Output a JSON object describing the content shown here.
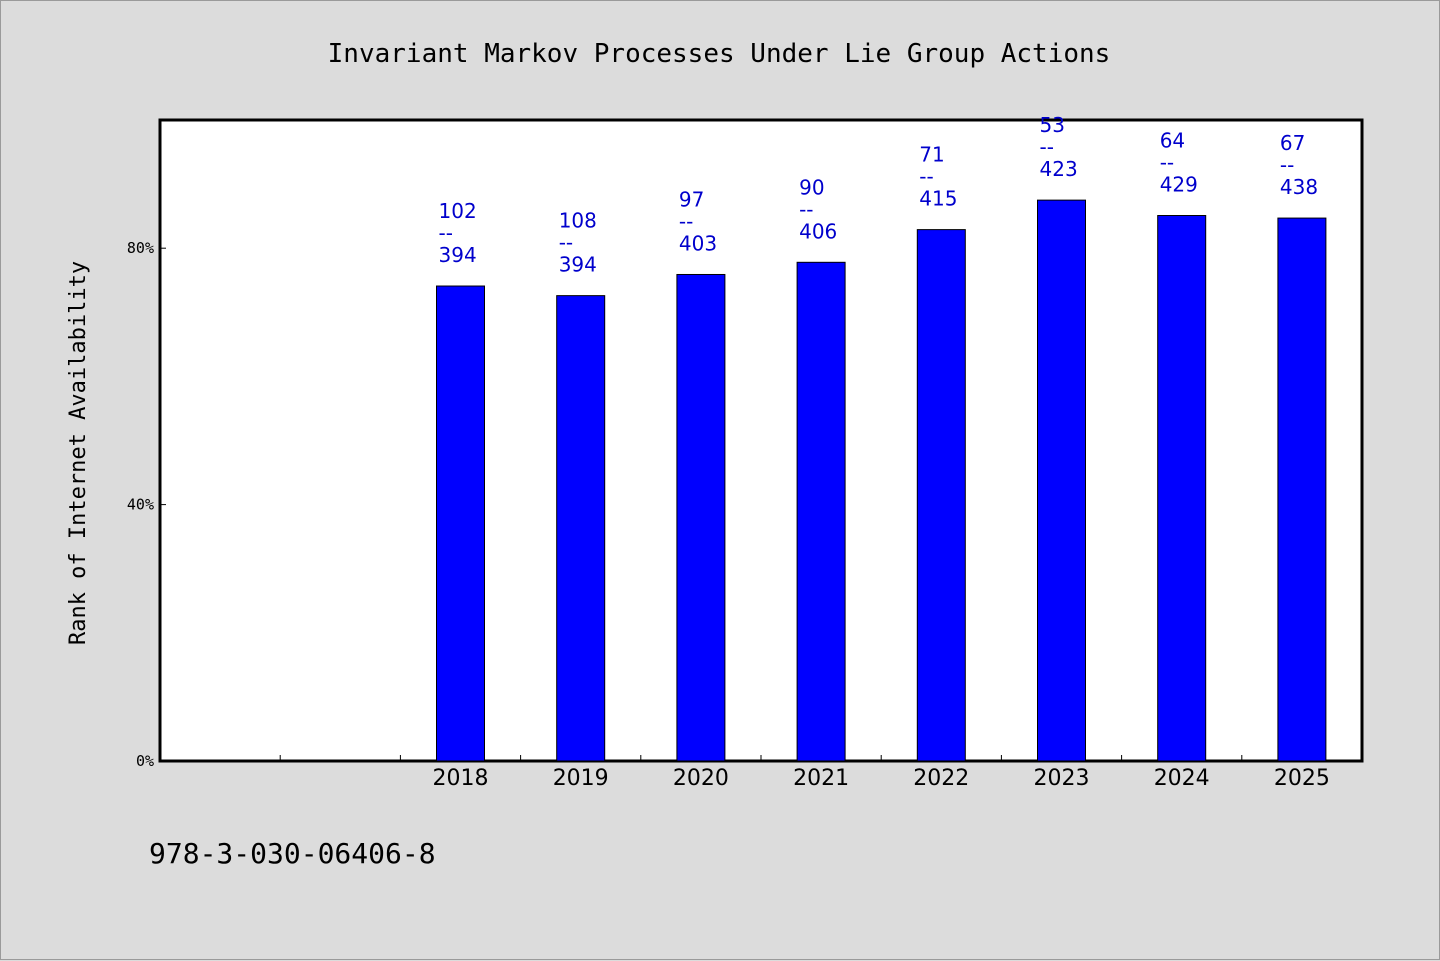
{
  "chart_data": {
    "type": "bar",
    "title": "Invariant Markov Processes Under Lie Group Actions",
    "xlabel": "",
    "ylabel": "Rank of Internet Availability",
    "categories": [
      "",
      "",
      "2018",
      "2019",
      "2020",
      "2021",
      "2022",
      "2023",
      "2024",
      "2025"
    ],
    "values": [
      null,
      null,
      74.1,
      72.6,
      75.9,
      77.8,
      82.9,
      87.5,
      85.1,
      84.7
    ],
    "point_labels": [
      null,
      null,
      [
        "102",
        "--",
        "394"
      ],
      [
        "108",
        "--",
        "394"
      ],
      [
        "97",
        "--",
        "403"
      ],
      [
        "90",
        "--",
        "406"
      ],
      [
        "71",
        "--",
        "415"
      ],
      [
        "53",
        "--",
        "423"
      ],
      [
        "64",
        "--",
        "429"
      ],
      [
        "67",
        "--",
        "438"
      ]
    ],
    "ylim": [
      0,
      100
    ],
    "yticks": [
      0,
      40,
      80
    ],
    "ytick_labels": [
      "0%",
      "40%",
      "80%"
    ],
    "grid": false,
    "colors": {
      "bar": "#0000ff",
      "label": "#0000cc",
      "plot_background": "#ffffff",
      "page_background": "#dcdcdc"
    }
  },
  "footer": {
    "isbn": "978-3-030-06406-8"
  }
}
